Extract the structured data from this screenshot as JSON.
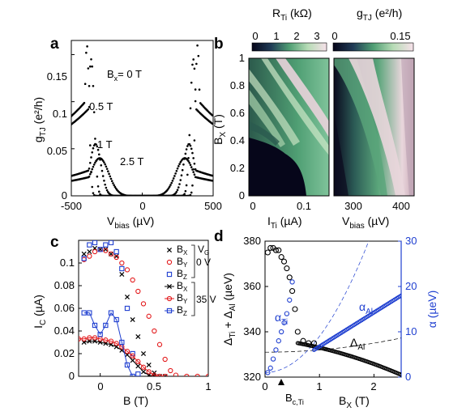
{
  "panels": {
    "a": {
      "letter": "a",
      "ylabel": "g",
      "ylabel_sub": "TJ",
      "ylabel_unit": " (e²/h)",
      "xlabel": "V",
      "xlabel_sub": "bias",
      "xlabel_unit": " (µV)",
      "xticks": [
        "-500",
        "0",
        "500"
      ],
      "yticks": [
        "0",
        "0.05",
        "0.1",
        "0.15"
      ],
      "labels": [
        "B",
        "= 0 T",
        "0.5 T",
        "1 T",
        "2.5 T"
      ],
      "label_sub": "x"
    },
    "b": {
      "letter": "b",
      "cbar1_title": "R",
      "cbar1_sub": "Ti",
      "cbar1_unit": " (kΩ)",
      "cbar1_ticks": [
        "0",
        "1",
        "2",
        "3"
      ],
      "cbar2_title": "g",
      "cbar2_sub": "TJ",
      "cbar2_unit": " (e²/h)",
      "cbar2_ticks": [
        "0",
        "0.15"
      ],
      "ylabel": "B",
      "ylabel_sub": "X",
      "ylabel_unit": " (T)",
      "yticks": [
        "0",
        "0.2",
        "0.4",
        "0.6",
        "0.8",
        "1"
      ],
      "x1label": "I",
      "x1label_sub": "Ti",
      "x1label_unit": " (µA)",
      "x1ticks": [
        "0",
        "0.1"
      ],
      "x2label": "V",
      "x2label_sub": "bias",
      "x2label_unit": " (µV)",
      "x2ticks": [
        "300",
        "400"
      ]
    },
    "c": {
      "letter": "c",
      "ylabel": "I",
      "ylabel_sub": "C",
      "ylabel_unit": " (µA)",
      "xlabel": "B (T)",
      "xticks": [
        "0",
        "0.5",
        "1"
      ],
      "yticks": [
        "0",
        "0.02",
        "0.04",
        "0.06",
        "0.08",
        "0.1"
      ],
      "legend_b": "B",
      "legend_subs": [
        "X",
        "Y",
        "Z",
        "X",
        "Y",
        "Z"
      ],
      "legend_vg": "V",
      "legend_vg_sub": "G",
      "legend_v1": "0 V",
      "legend_v2": "35 V"
    },
    "d": {
      "letter": "d",
      "ylabel_left": "Δ",
      "ylabel_left_s1": "Ti",
      "ylabel_left_mid": " + Δ",
      "ylabel_left_s2": "Al",
      "ylabel_left_unit": " (µeV)",
      "ylabel_right": "α",
      "ylabel_right_unit": " (µeV)",
      "xlabel": "B",
      "xlabel_sub": "X",
      "xlabel_unit": " (T)",
      "xticks": [
        "0",
        "1",
        "2"
      ],
      "yticks_left": [
        "320",
        "340",
        "360",
        "380"
      ],
      "yticks_right": [
        "0",
        "10",
        "20",
        "30"
      ],
      "bc_label": "B",
      "bc_sub": "c,Ti",
      "alpha_al": "α",
      "alpha_al_sub": "Al",
      "alpha_ti": "α",
      "alpha_ti_sub": "Ti",
      "delta_al": "Δ",
      "delta_al_sub": "Al"
    }
  },
  "colors": {
    "black": "#000000",
    "red": "#e31a1c",
    "blue": "#1f3fd0",
    "cmap_dark": "#0b0a1e",
    "cmap_green": "#4f9e73",
    "cmap_light": "#f4dfe6"
  },
  "chart_data": [
    {
      "panel": "a",
      "type": "line",
      "xlabel": "Vbias (µV)",
      "ylabel": "gTJ (e²/h)",
      "xlim": [
        -500,
        500
      ],
      "ylim": [
        0,
        0.165
      ],
      "series": [
        {
          "name": "Bx = 0 T",
          "peak_x": 390,
          "peak_y": 0.16,
          "width": 22,
          "floor": 0.0
        },
        {
          "name": "0.5 T",
          "peak_x": 360,
          "peak_y": 0.145,
          "width": 30,
          "floor": 0.0
        },
        {
          "name": "1 T",
          "peak_x": 330,
          "peak_y": 0.055,
          "width": 55,
          "floor": 0.0
        },
        {
          "name": "2.5 T",
          "peak_x": 300,
          "peak_y": 0.04,
          "width": 90,
          "floor": 0.0
        }
      ]
    },
    {
      "panel": "c",
      "type": "scatter",
      "xlabel": "B (T)",
      "ylabel": "IC (µA)",
      "xlim": [
        -0.2,
        1.0
      ],
      "ylim": [
        0,
        0.12
      ],
      "series": [
        {
          "name": "Bx",
          "vg": "0 V",
          "marker": "x",
          "color": "#000000",
          "x": [
            -0.15,
            -0.1,
            -0.05,
            0,
            0.05,
            0.1,
            0.15,
            0.2,
            0.25,
            0.3,
            0.35,
            0.4,
            0.45,
            0.5,
            0.55,
            0.6
          ],
          "y": [
            0.108,
            0.11,
            0.113,
            0.112,
            0.112,
            0.108,
            0.106,
            0.09,
            0.07,
            0.05,
            0.035,
            0.02,
            0.01,
            0.003,
            0,
            0
          ]
        },
        {
          "name": "By",
          "vg": "0 V",
          "marker": "o",
          "color": "#e31a1c",
          "x": [
            -0.15,
            -0.1,
            -0.05,
            0,
            0.05,
            0.1,
            0.15,
            0.2,
            0.25,
            0.3,
            0.35,
            0.4,
            0.45,
            0.5,
            0.55,
            0.6,
            0.65,
            0.7,
            0.8,
            0.9,
            1.0
          ],
          "y": [
            0.103,
            0.106,
            0.11,
            0.112,
            0.111,
            0.108,
            0.105,
            0.1,
            0.094,
            0.085,
            0.075,
            0.064,
            0.053,
            0.04,
            0.028,
            0.015,
            0.005,
            0.001,
            0,
            0,
            0
          ]
        },
        {
          "name": "Bz",
          "vg": "0 V",
          "marker": "s",
          "color": "#1f3fd0",
          "x": [
            -0.15,
            -0.1,
            -0.05,
            0,
            0.05,
            0.1,
            0.15,
            0.2,
            0.25,
            0.3,
            0.35
          ],
          "y": [
            0.104,
            0.116,
            0.118,
            0.112,
            0.116,
            0.118,
            0.11,
            0.095,
            0.06,
            0.02,
            0.002
          ]
        },
        {
          "name": "Bx",
          "vg": "35 V",
          "marker": "x",
          "color": "#000000",
          "x": [
            -0.15,
            -0.1,
            -0.05,
            0,
            0.05,
            0.1,
            0.15,
            0.2,
            0.25,
            0.3,
            0.35,
            0.4,
            0.45,
            0.5
          ],
          "y": [
            0.03,
            0.031,
            0.031,
            0.03,
            0.029,
            0.028,
            0.026,
            0.023,
            0.019,
            0.014,
            0.009,
            0.004,
            0.001,
            0
          ]
        },
        {
          "name": "By",
          "vg": "35 V",
          "marker": "o",
          "color": "#e31a1c",
          "x": [
            -0.2,
            -0.15,
            -0.1,
            -0.05,
            0,
            0.05,
            0.1,
            0.15,
            0.2,
            0.25,
            0.3,
            0.35,
            0.4,
            0.45,
            0.5,
            0.55,
            0.6
          ],
          "y": [
            0.033,
            0.033,
            0.034,
            0.034,
            0.033,
            0.032,
            0.031,
            0.029,
            0.026,
            0.022,
            0.018,
            0.013,
            0.008,
            0.004,
            0.001,
            0,
            0
          ]
        },
        {
          "name": "Bz",
          "vg": "35 V",
          "marker": "s",
          "color": "#1f3fd0",
          "x": [
            -0.15,
            -0.1,
            -0.05,
            0,
            0.05,
            0.1,
            0.15,
            0.2,
            0.25,
            0.3
          ],
          "y": [
            0.056,
            0.056,
            0.045,
            0.037,
            0.045,
            0.056,
            0.05,
            0.03,
            0.01,
            0
          ]
        }
      ]
    },
    {
      "panel": "d",
      "type": "scatter",
      "xlabel": "BX (T)",
      "ylabel": "ΔTi + ΔAl (µeV)",
      "ylabel_right": "α (µeV)",
      "xlim": [
        0,
        2.5
      ],
      "ylim": [
        320,
        380
      ],
      "ylim_right": [
        0,
        30
      ],
      "bc_ti": 0.6,
      "series": [
        {
          "name": "ΔTi + ΔAl",
          "marker": "o",
          "color": "#000000",
          "x": [
            0.05,
            0.1,
            0.15,
            0.2,
            0.25,
            0.3,
            0.35,
            0.4,
            0.45,
            0.5,
            0.55,
            0.6,
            0.7,
            0.8,
            0.9
          ],
          "y": [
            375,
            377,
            377,
            376,
            376,
            373,
            371,
            368,
            364,
            358,
            350,
            340,
            336,
            335,
            335
          ]
        },
        {
          "name": "ΔAl",
          "marker": "dot",
          "color": "#000000",
          "x_start": 0.6,
          "x_end": 2.5,
          "y_start": 335,
          "y_end": 321
        },
        {
          "name": "αTi",
          "marker": "o",
          "color": "#1f3fd0",
          "x": [
            0.05,
            0.1,
            0.15,
            0.2,
            0.25,
            0.3,
            0.35,
            0.4,
            0.45,
            0.5
          ],
          "y_right": [
            1,
            2,
            4,
            6,
            8,
            10,
            12,
            14,
            17,
            21
          ]
        },
        {
          "name": "αAl",
          "marker": "o",
          "color": "#1f3fd0",
          "x_start": 0.9,
          "x_end": 2.5,
          "y_right_start": 6,
          "y_right_end": 18
        }
      ]
    }
  ]
}
